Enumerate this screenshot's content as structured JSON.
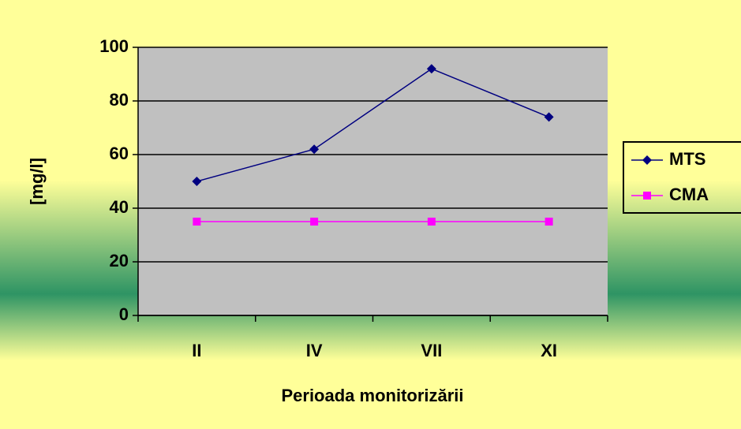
{
  "chart_data": {
    "type": "line",
    "x_label": "Perioada monitorizării",
    "y_label": "[mg/l]",
    "categories": [
      "II",
      "IV",
      "VII",
      "XI"
    ],
    "series": [
      {
        "name": "MTS",
        "color": "#000080",
        "marker": "diamond",
        "values": [
          50,
          62,
          92,
          74
        ]
      },
      {
        "name": "CMA",
        "color": "#ff00ff",
        "marker": "square",
        "values": [
          35,
          35,
          35,
          35
        ]
      }
    ],
    "ylim": [
      0,
      100
    ],
    "yticks": [
      0,
      20,
      40,
      60,
      80,
      100
    ],
    "grid": true,
    "legend": "right"
  }
}
